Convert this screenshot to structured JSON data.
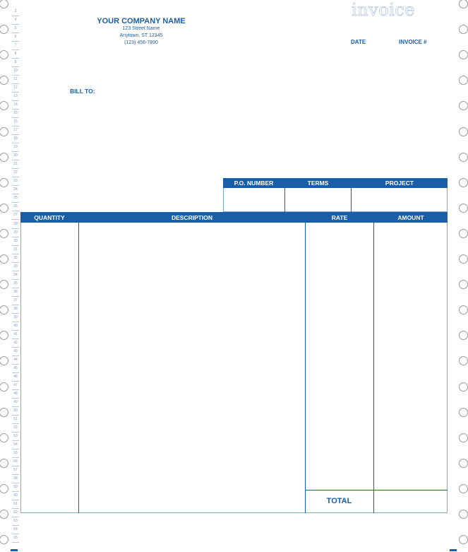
{
  "company": {
    "name": "YOUR COMPANY NAME",
    "street": "123 Street Name",
    "city": "Anytown, ST 12345",
    "phone": "(123) 456-7890"
  },
  "title": "invoice",
  "labels": {
    "date": "DATE",
    "invoice_no": "INVOICE #",
    "bill_to": "BILL TO:"
  },
  "info_table": {
    "headers": [
      "P.O. NUMBER",
      "TERMS",
      "PROJECT"
    ]
  },
  "items_table": {
    "headers": [
      "QUANTITY",
      "DESCRIPTION",
      "RATE",
      "AMOUNT"
    ],
    "total_label": "TOTAL"
  },
  "line_numbers": {
    "start": 3,
    "end": 65
  },
  "colors": {
    "accent": "#1a5ea8",
    "rule": "#7fa7d3"
  }
}
